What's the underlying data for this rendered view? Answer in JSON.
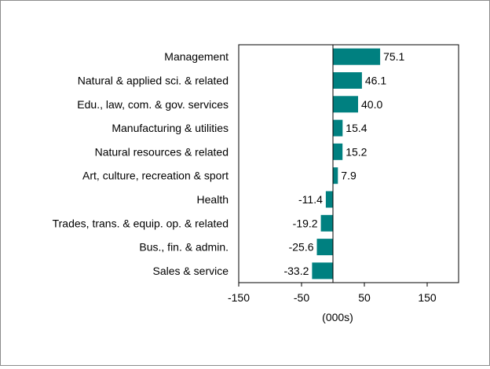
{
  "chart_data": {
    "type": "bar",
    "orientation": "horizontal",
    "categories": [
      "Management",
      "Natural & applied sci. & related",
      "Edu., law, com. & gov. services",
      "Manufacturing & utilities",
      "Natural resources & related",
      "Art, culture, recreation & sport",
      "Health",
      "Trades, trans. & equip. op. & related",
      "Bus., fin. & admin.",
      "Sales & service"
    ],
    "values": [
      75.1,
      46.1,
      40.0,
      15.4,
      15.2,
      7.9,
      -11.4,
      -19.2,
      -25.6,
      -33.2
    ],
    "value_labels": [
      "75.1",
      "46.1",
      "40.0",
      "15.4",
      "15.2",
      "7.9",
      "-11.4",
      "-19.2",
      "-25.6",
      "-33.2"
    ],
    "xlim": [
      -150,
      200
    ],
    "xticks": [
      -150,
      -50,
      50,
      150
    ],
    "tick_labels": [
      "-150",
      "-50",
      "50",
      "150"
    ],
    "xlabel": "(000s)",
    "ylabel": "",
    "title": "",
    "grid": false,
    "legend": "none",
    "bar_color": "#008080"
  }
}
